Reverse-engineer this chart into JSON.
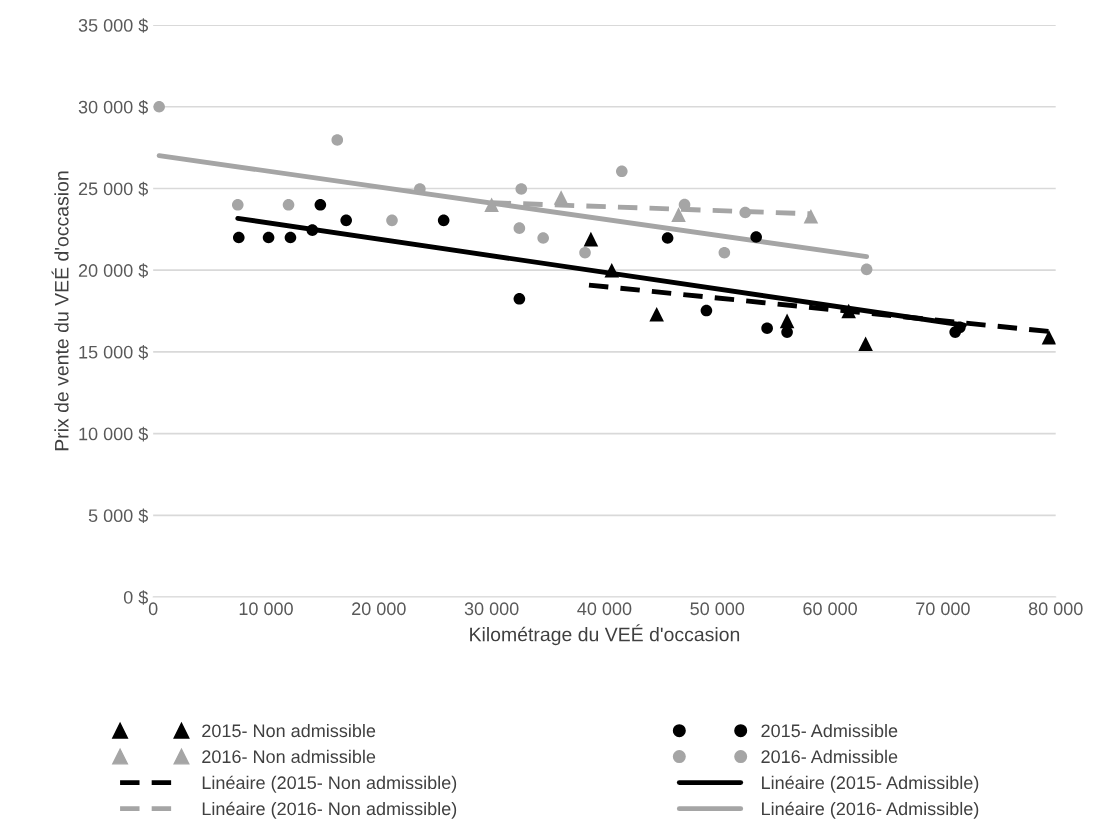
{
  "chart_data": {
    "type": "scatter",
    "xlabel": "Kilométrage du VEÉ d'occasion",
    "ylabel": "Prix de vente du VEÉ d'occasion",
    "xlim": [
      0,
      80000
    ],
    "ylim": [
      0,
      35000
    ],
    "xticks": [
      0,
      {
        "value": 10000,
        "label": "10 000"
      },
      {
        "value": 20000,
        "label": "20 000"
      },
      {
        "value": 30000,
        "label": "30 000"
      },
      {
        "value": 40000,
        "label": "40 000"
      },
      {
        "value": 50000,
        "label": "50 000"
      },
      {
        "value": 60000,
        "label": "60 000"
      },
      {
        "value": 70000,
        "label": "70 000"
      },
      {
        "value": 80000,
        "label": "80 000"
      }
    ],
    "yticks": [
      {
        "value": 0,
        "label": "0 $"
      },
      {
        "value": 5000,
        "label": "5 000 $"
      },
      {
        "value": 10000,
        "label": "10 000 $"
      },
      {
        "value": 15000,
        "label": "15 000 $"
      },
      {
        "value": 20000,
        "label": "20 000 $"
      },
      {
        "value": 25000,
        "label": "25 000 $"
      },
      {
        "value": 30000,
        "label": "30 000 $"
      },
      {
        "value": 35000,
        "label": "35 000 $"
      }
    ],
    "grid": "y",
    "legend": "bottom",
    "series": [
      {
        "name": "2015- Non admissible",
        "marker": "triangle",
        "color": "#000000",
        "x": [
          38800,
          40650,
          44630,
          56190,
          61650,
          63150,
          79400
        ],
        "values": [
          21900,
          20000,
          17300,
          16900,
          17500,
          15500,
          15900
        ]
      },
      {
        "name": "2015- Admissible",
        "marker": "circle",
        "color": "#000000",
        "x": [
          7590,
          10230,
          12170,
          14110,
          14820,
          17110,
          25750,
          32460,
          45600,
          49040,
          53450,
          54420,
          56190,
          71090,
          71500
        ],
        "values": [
          22000,
          22000,
          22000,
          22450,
          24000,
          23050,
          23050,
          18250,
          21970,
          17530,
          22030,
          16450,
          16210,
          16210,
          16500
        ]
      },
      {
        "name": "2016- Non admissible",
        "marker": "triangle",
        "color": "#a5a5a5",
        "x": [
          30000,
          36160,
          46570,
          58300
        ],
        "values": [
          24000,
          24450,
          23400,
          23300
        ]
      },
      {
        "name": "2016- Admissible",
        "marker": "circle",
        "color": "#a5a5a5",
        "x": [
          530,
          7500,
          12000,
          16320,
          21170,
          23640,
          32460,
          32630,
          34570,
          38280,
          41540,
          47100,
          50630,
          52480,
          63240
        ],
        "values": [
          30000,
          24000,
          24000,
          27970,
          23050,
          24970,
          22570,
          24970,
          21970,
          21070,
          26050,
          24010,
          21070,
          23530,
          20050
        ]
      },
      {
        "name": "Linéaire (2015- Non admissible)",
        "type": "line",
        "line_style": "dashed",
        "color": "#000000",
        "x": [
          38630,
          79400
        ],
        "values": [
          19090,
          16250
        ]
      },
      {
        "name": "Linéaire (2015- Admissible)",
        "type": "line",
        "line_style": "solid",
        "color": "#000000",
        "x": [
          7500,
          71900
        ],
        "values": [
          23170,
          16630
        ]
      },
      {
        "name": "Linéaire (2016- Non admissible)",
        "type": "line",
        "line_style": "dashed",
        "color": "#a5a5a5",
        "x": [
          30000,
          58300
        ],
        "values": [
          24130,
          23450
        ]
      },
      {
        "name": "Linéaire (2016- Admissible)",
        "type": "line",
        "line_style": "solid",
        "color": "#a5a5a5",
        "x": [
          530,
          63240
        ],
        "values": [
          27010,
          20830
        ]
      }
    ]
  }
}
